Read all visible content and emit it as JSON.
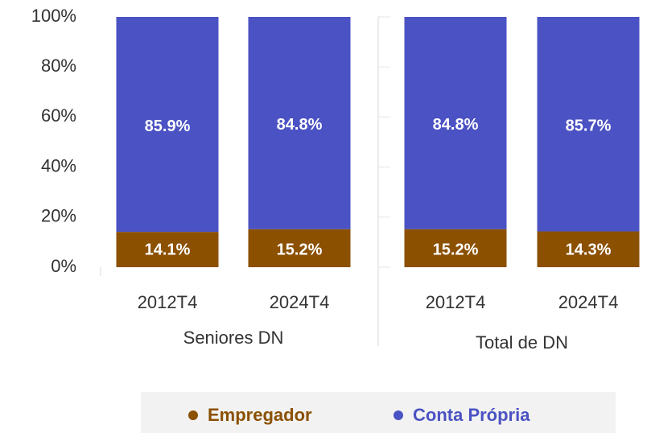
{
  "chart_data": {
    "type": "stacked_bar",
    "categories": [
      "2012T4",
      "2024T4",
      "2012T4",
      "2024T4"
    ],
    "groups": [
      {
        "label": "Seniores DN",
        "size": 2
      },
      {
        "label": "Total de DN",
        "size": 2
      }
    ],
    "series": [
      {
        "name": "Empregador",
        "color": "#8B5000",
        "values": [
          14.1,
          15.2,
          15.2,
          14.3
        ],
        "value_labels": [
          "14.1%",
          "15.2%",
          "15.2%",
          "14.3%"
        ]
      },
      {
        "name": "Conta Própria",
        "color": "#4B52C3",
        "values": [
          85.9,
          84.8,
          84.8,
          85.7
        ],
        "value_labels": [
          "85.9%",
          "84.8%",
          "84.8%",
          "85.7%"
        ]
      }
    ],
    "ylim": [
      0,
      100
    ],
    "yticks": [
      {
        "value": 0,
        "label": "0%"
      },
      {
        "value": 20,
        "label": "20%"
      },
      {
        "value": 40,
        "label": "40%"
      },
      {
        "value": 60,
        "label": "60%"
      },
      {
        "value": 80,
        "label": "80%"
      },
      {
        "value": 100,
        "label": "100%"
      }
    ],
    "legend": "bottom"
  }
}
